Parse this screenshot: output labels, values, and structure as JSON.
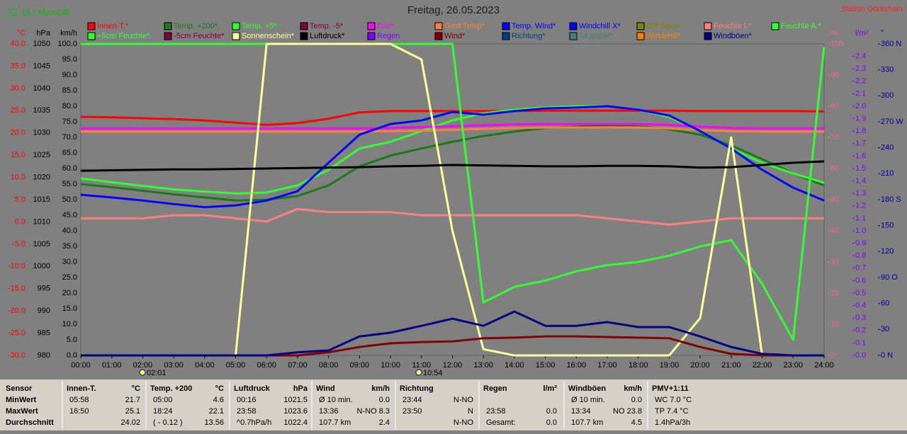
{
  "header": {
    "title": "Freitag, 26.05.2023",
    "station": "Station Göritzhain",
    "indicator": "13.7 Monat-Ø",
    "markers": [
      "02:01",
      "10:54"
    ]
  },
  "chart_data": {
    "type": "line",
    "categories": [
      "00:00",
      "01:00",
      "02:00",
      "03:00",
      "04:00",
      "05:00",
      "06:00",
      "07:00",
      "08:00",
      "09:00",
      "10:00",
      "11:00",
      "12:00",
      "13:00",
      "14:00",
      "15:00",
      "16:00",
      "17:00",
      "18:00",
      "19:00",
      "20:00",
      "21:00",
      "22:00",
      "23:00",
      "24:00"
    ],
    "axes": [
      {
        "unit": "°C",
        "color": "#ff0000",
        "lim": [
          -30,
          40
        ],
        "ticks": [
          {
            "value": 40,
            "label": "40.0"
          },
          {
            "value": 35,
            "label": "35.0"
          },
          {
            "value": 30,
            "label": "30.0"
          },
          {
            "value": 25,
            "label": "25.0"
          },
          {
            "value": 20,
            "label": "20.0"
          },
          {
            "value": 15,
            "label": "15.0"
          },
          {
            "value": 10,
            "label": "10.0"
          },
          {
            "value": 5,
            "label": "5.0"
          },
          {
            "value": 0,
            "label": "0.0"
          },
          {
            "value": -5,
            "label": "-5.0"
          },
          {
            "value": -10,
            "label": "-10.0"
          },
          {
            "value": -15,
            "label": "-15.0"
          },
          {
            "value": -20,
            "label": "-20.0"
          },
          {
            "value": -25,
            "label": "-25.0"
          },
          {
            "value": -30,
            "label": "-30.0"
          }
        ]
      },
      {
        "unit": "hPa",
        "color": "#000000",
        "lim": [
          980,
          1050
        ],
        "ticks": [
          1050,
          1045,
          1040,
          1035,
          1030,
          1025,
          1020,
          1015,
          1010,
          1005,
          1000,
          995,
          990,
          985,
          980
        ]
      },
      {
        "unit": "km/h",
        "color": "#000000",
        "lim": [
          0,
          100
        ],
        "ticks": [
          {
            "value": 100,
            "label": "100.0"
          },
          {
            "value": 95,
            "label": "95.0"
          },
          {
            "value": 90,
            "label": "90.0"
          },
          {
            "value": 85,
            "label": "85.0"
          },
          {
            "value": 80,
            "label": "80.0"
          },
          {
            "value": 75,
            "label": "75.0"
          },
          {
            "value": 70,
            "label": "70.0"
          },
          {
            "value": 65,
            "label": "65.0"
          },
          {
            "value": 60,
            "label": "60.0"
          },
          {
            "value": 55,
            "label": "55.0"
          },
          {
            "value": 50,
            "label": "50.0"
          },
          {
            "value": 45,
            "label": "45.0"
          },
          {
            "value": 40,
            "label": "40.0"
          },
          {
            "value": 35,
            "label": "35.0"
          },
          {
            "value": 30,
            "label": "30.0"
          },
          {
            "value": 25,
            "label": "25.0"
          },
          {
            "value": 20,
            "label": "20.0"
          },
          {
            "value": 15,
            "label": "15.0"
          },
          {
            "value": 10,
            "label": "10.0"
          },
          {
            "value": 5,
            "label": "5.0"
          },
          {
            "value": 0,
            "label": "0.0"
          }
        ]
      },
      {
        "unit": "%",
        "color": "#ff6080",
        "lim": [
          0,
          100
        ],
        "ticks": [
          100,
          90,
          80,
          70,
          60,
          50,
          40,
          30,
          20,
          10,
          0
        ]
      },
      {
        "unit": "l/m²",
        "color": "#8000ff",
        "lim": [
          0,
          2.5
        ],
        "ticks": [
          2.4,
          2.3,
          2.2,
          2.1,
          {
            "value": 2,
            "label": "2.0"
          },
          1.9,
          1.8,
          1.7,
          1.6,
          1.5,
          1.4,
          1.3,
          1.2,
          1.1,
          {
            "value": 1,
            "label": "1.0"
          },
          0.9,
          0.8,
          0.7,
          0.6,
          0.5,
          0.4,
          0.3,
          0.2,
          0.1,
          {
            "value": 0,
            "label": "0.0"
          }
        ]
      },
      {
        "unit": "°",
        "color": "#0000a0",
        "lim": [
          0,
          360
        ],
        "ticks": [
          {
            "value": 360,
            "label": "360 N"
          },
          330,
          300,
          {
            "value": 270,
            "label": "270 W"
          },
          240,
          210,
          {
            "value": 180,
            "label": "180 S"
          },
          150,
          120,
          {
            "value": 90,
            "label": "90 O"
          },
          60,
          30,
          {
            "value": 0,
            "label": "0 N"
          }
        ]
      }
    ],
    "series": [
      {
        "name": "Innen-T.*",
        "color": "#ff0000",
        "axis": 0,
        "values": [
          23.6,
          23.5,
          23.3,
          23.1,
          22.8,
          22.3,
          21.8,
          22.2,
          23.2,
          24.6,
          24.9,
          24.9,
          24.9,
          24.9,
          24.9,
          25.0,
          25.0,
          25.0,
          25.0,
          25.0,
          24.9,
          24.9,
          24.9,
          24.9,
          24.8
        ]
      },
      {
        "name": "Temp. +200*",
        "color": "#1a7a1a",
        "axis": 0,
        "values": [
          8.5,
          7.8,
          7.0,
          6.2,
          5.5,
          4.8,
          5.0,
          5.8,
          8.2,
          12.5,
          14.9,
          16.5,
          18.0,
          19.3,
          20.3,
          21.1,
          21.4,
          21.7,
          21.5,
          20.8,
          19.6,
          17.2,
          14.1,
          10.9,
          8.2
        ]
      },
      {
        "name": "Temp. +5*",
        "color": "#33ff33",
        "axis": 0,
        "values": [
          9.8,
          8.9,
          8.1,
          7.3,
          6.8,
          6.4,
          6.6,
          8.2,
          11.7,
          16.5,
          18.0,
          20.4,
          22.8,
          24.4,
          25.2,
          25.7,
          26.0,
          26.0,
          25.2,
          23.6,
          20.4,
          16.5,
          13.3,
          10.9,
          8.8
        ]
      },
      {
        "name": "Temp. -5*",
        "color": "#800040"
      },
      {
        "name": "Bad*",
        "color": "#ff00ff",
        "axis": 0,
        "values": [
          21.0,
          21.0,
          21.0,
          21.0,
          21.0,
          21.0,
          21.0,
          21.0,
          21.0,
          21.0,
          21.1,
          21.3,
          21.5,
          21.7,
          21.9,
          22.0,
          22.0,
          22.0,
          22.0,
          21.8,
          21.4,
          21.1,
          21.0,
          21.0,
          21.0
        ]
      },
      {
        "name": "Gast Temp*",
        "color": "#ff8040",
        "axis": 0,
        "values": [
          20.3,
          20.3,
          20.3,
          20.3,
          20.3,
          20.3,
          20.3,
          20.3,
          20.3,
          20.3,
          20.4,
          20.5,
          20.7,
          20.9,
          21.1,
          21.2,
          21.2,
          21.2,
          21.2,
          21.0,
          20.6,
          20.4,
          20.3,
          20.3,
          20.3
        ]
      },
      {
        "name": "Temp. Wind*",
        "color": "#0000ff",
        "axis": 0,
        "values": [
          6.1,
          5.5,
          4.8,
          4.0,
          3.3,
          3.7,
          4.8,
          6.9,
          13.3,
          19.6,
          22.0,
          22.8,
          24.7,
          24.1,
          24.9,
          25.5,
          25.7,
          26.0,
          25.2,
          23.9,
          20.4,
          16.5,
          11.7,
          7.7,
          4.8
        ]
      },
      {
        "name": "Windchill X*",
        "color": "#0000ff"
      },
      {
        "name": "Diff Temp.",
        "color": "#808000"
      },
      {
        "name": "Feuchte I.*",
        "color": "#ff8080",
        "axis": 3,
        "values": [
          44,
          44,
          44,
          45,
          45,
          44,
          43,
          47,
          46,
          46,
          46,
          45,
          45,
          45,
          45,
          45,
          45,
          44,
          43,
          42,
          43,
          44,
          44,
          44,
          44
        ]
      },
      {
        "name": "Feuchte A.*",
        "color": "#33ff33",
        "axis": 3,
        "values": [
          100,
          100,
          100,
          100,
          100,
          100,
          100,
          100,
          100,
          100,
          100,
          100,
          100,
          17,
          22,
          24,
          27,
          29,
          30,
          32,
          35,
          37,
          23,
          5,
          99
        ]
      },
      {
        "name": "+5cm Feuchte*",
        "color": "#33ff33"
      },
      {
        "name": "-5cm Feuchte*",
        "color": "#800040"
      },
      {
        "name": "Sonnenschein*",
        "color": "#ffff99",
        "axis": 3,
        "values": [
          0,
          0,
          0,
          0,
          0,
          0,
          100,
          100,
          100,
          100,
          100,
          95,
          40,
          2,
          0,
          0,
          0,
          0,
          0,
          0,
          12,
          70,
          0,
          0,
          0
        ]
      },
      {
        "name": "Luftdruck*",
        "color": "#000000",
        "axis": 1,
        "values": [
          1021.5,
          1021.6,
          1021.7,
          1021.8,
          1021.8,
          1021.9,
          1022.0,
          1022.1,
          1022.2,
          1022.3,
          1022.5,
          1022.6,
          1022.8,
          1022.7,
          1022.6,
          1022.5,
          1022.5,
          1022.6,
          1022.6,
          1022.5,
          1022.2,
          1022.3,
          1022.8,
          1023.3,
          1023.6
        ]
      },
      {
        "name": "Regen",
        "color": "#8000ff"
      },
      {
        "name": "Wind*",
        "color": "#800000",
        "axis": 2,
        "values": [
          0,
          0,
          0,
          0,
          0,
          0,
          0,
          0,
          1,
          2.7,
          3.9,
          4.3,
          4.5,
          5.5,
          5.7,
          6.1,
          6.1,
          5.9,
          5.7,
          5.5,
          2.7,
          0.5,
          0,
          0,
          0
        ]
      },
      {
        "name": "Richtung*",
        "color": "#004080"
      },
      {
        "name": "Taupunkt*",
        "color": "#408080"
      },
      {
        "name": "Windchill*",
        "color": "#ff8000"
      },
      {
        "name": "Windböen*",
        "color": "#000080",
        "axis": 2,
        "values": [
          0,
          0,
          0,
          0,
          0,
          0,
          0,
          1,
          1.6,
          6.1,
          7.3,
          9.5,
          11.8,
          9.5,
          14.1,
          9.5,
          9.5,
          10.7,
          9.1,
          9.1,
          6.1,
          2.7,
          0.5,
          0,
          0
        ]
      }
    ]
  },
  "stats": {
    "labels": [
      "Sensor",
      "MinWert",
      "MaxWert",
      "Durchschnitt"
    ],
    "sections": [
      {
        "title": "Innen-T.",
        "unit": "°C",
        "rows": [
          {
            "l": "05:58",
            "r": "21.7"
          },
          {
            "l": "16:50",
            "r": "25.1"
          },
          {
            "r": "24.02"
          }
        ]
      },
      {
        "title": "Temp. +200",
        "unit": "°C",
        "rows": [
          {
            "l": "05:00",
            "r": "4.6"
          },
          {
            "l": "18:24",
            "r": "22.1"
          },
          {
            "l": "( - 0.12 )",
            "r": "13.56"
          }
        ]
      },
      {
        "title": "Luftdruck",
        "unit": "hPa",
        "rows": [
          {
            "l": "00:16",
            "r": "1021.5"
          },
          {
            "l": "23:58",
            "r": "1023.6"
          },
          {
            "l": "^0.7hPa/h",
            "r": "1022.4"
          }
        ]
      },
      {
        "title": "Wind",
        "unit": "km/h",
        "rows": [
          {
            "l": "Ø 10 min.",
            "r": "0.0"
          },
          {
            "l": "13:36",
            "r": "N-NO 8.3"
          },
          {
            "l": "107.7 km",
            "r": "2.4"
          }
        ]
      },
      {
        "title": "Richtung",
        "rows": [
          {
            "l": "23:44",
            "r": "N-NO"
          },
          {
            "l": "23:50",
            "r": "N"
          },
          {
            "r": "N-NO"
          }
        ]
      },
      {
        "title": "Regen",
        "unit": "l/m²",
        "rows": [
          {},
          {
            "l": "23:58",
            "r": "0.0"
          },
          {
            "l": "Gesamt:",
            "r": "0.0"
          }
        ]
      },
      {
        "title": "Windböen",
        "unit": "km/h",
        "rows": [
          {
            "l": "Ø 10 min.",
            "r": "0.0"
          },
          {
            "l": "13:34",
            "r": "NO 23.8"
          },
          {
            "l": "107.7 km",
            "r": "4.5"
          }
        ]
      },
      {
        "title": "PMV+1:11",
        "rows": [
          {
            "l": "WC 7.0 °C"
          },
          {
            "l": "TP 7.4 °C"
          },
          {
            "l": "1.4hPa/3h"
          }
        ]
      }
    ]
  }
}
